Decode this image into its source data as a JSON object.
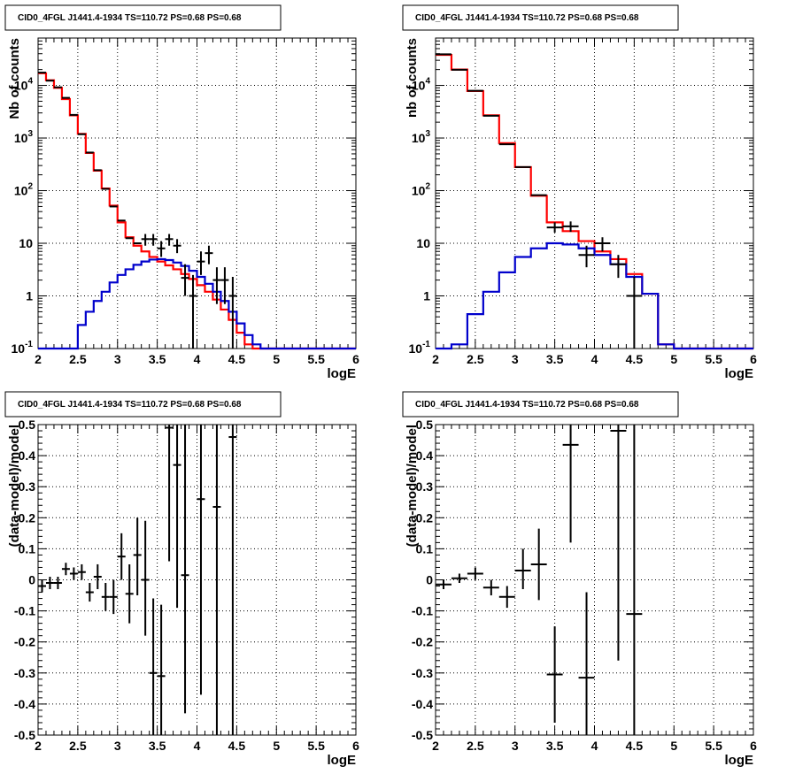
{
  "chart_data": [
    {
      "type": "histogram-log",
      "title": "CID0_4FGL J1441.4-1934 TS=110.72 PS=0.68 PS=0.68",
      "xlabel": "logE",
      "ylabel": "Nb of counts",
      "xlim": [
        2,
        6
      ],
      "ylim_log10": [
        -1,
        4.9
      ],
      "log_y": true,
      "grid": true,
      "x_ticks": [
        "2",
        "2.5",
        "3",
        "3.5",
        "4",
        "4.5",
        "5",
        "5.5",
        "6"
      ],
      "y_ticks": [
        {
          "value": 0.1,
          "label": "10",
          "exp": "-1"
        },
        {
          "value": 1,
          "label": "1",
          "exp": ""
        },
        {
          "value": 10,
          "label": "10",
          "exp": ""
        },
        {
          "value": 100,
          "label": "10",
          "exp": "2"
        },
        {
          "value": 1000,
          "label": "10",
          "exp": "3"
        },
        {
          "value": 10000,
          "label": "10",
          "exp": "4"
        }
      ],
      "bin_edges": [
        2.0,
        2.1,
        2.2,
        2.3,
        2.4,
        2.5,
        2.6,
        2.7,
        2.8,
        2.9,
        3.0,
        3.1,
        3.2,
        3.3,
        3.4,
        3.5,
        3.6,
        3.7,
        3.8,
        3.9,
        4.0,
        4.1,
        4.2,
        4.3,
        4.4,
        4.5,
        4.6,
        4.7,
        4.8,
        4.9,
        5.0,
        5.1,
        5.2,
        5.3,
        5.4,
        5.5,
        5.6,
        5.7,
        5.8,
        5.9,
        6.0
      ],
      "series": [
        {
          "name": "",
          "color": "#ff0000",
          "values": [
            17000,
            12500,
            9000,
            5500,
            2700,
            1200,
            520,
            240,
            110,
            52,
            25,
            13,
            9,
            7,
            5.5,
            4.5,
            3.8,
            3.2,
            2.6,
            2.1,
            1.6,
            1.2,
            0.85,
            0.55,
            0.35,
            0.2,
            0.12,
            0.1,
            0.1,
            0.1,
            0.1,
            0.1,
            0.1,
            0.1,
            0.1,
            0.1,
            0.1,
            0.1,
            0.1,
            0.1
          ]
        },
        {
          "name": "",
          "color": "#0000cc",
          "values": [
            0.1,
            0.1,
            0.1,
            0.1,
            0.1,
            0.28,
            0.5,
            0.8,
            1.2,
            1.8,
            2.5,
            3.2,
            3.9,
            4.5,
            4.9,
            5.0,
            4.8,
            4.3,
            3.7,
            3.0,
            2.3,
            1.7,
            1.2,
            0.8,
            0.5,
            0.3,
            0.18,
            0.12,
            0.1,
            0.1,
            0.1,
            0.1,
            0.1,
            0.1,
            0.1,
            0.1,
            0.1,
            0.1,
            0.1,
            0.1
          ]
        }
      ],
      "data_points": [
        {
          "x": 2.05,
          "y": 17500
        },
        {
          "x": 2.15,
          "y": 12300
        },
        {
          "x": 2.25,
          "y": 9200
        },
        {
          "x": 2.35,
          "y": 5800
        },
        {
          "x": 2.45,
          "y": 2750
        },
        {
          "x": 2.55,
          "y": 1180
        },
        {
          "x": 2.65,
          "y": 530
        },
        {
          "x": 2.75,
          "y": 245
        },
        {
          "x": 2.85,
          "y": 108
        },
        {
          "x": 2.95,
          "y": 50
        },
        {
          "x": 3.05,
          "y": 27
        },
        {
          "x": 3.15,
          "y": 12.5
        },
        {
          "x": 3.25,
          "y": 10
        },
        {
          "x": 3.35,
          "y": 12,
          "yerr": [
            9,
            15
          ]
        },
        {
          "x": 3.45,
          "y": 12,
          "yerr": [
            9,
            15
          ]
        },
        {
          "x": 3.55,
          "y": 8,
          "yerr": [
            5.5,
            11
          ]
        },
        {
          "x": 3.65,
          "y": 12,
          "yerr": [
            9,
            15
          ]
        },
        {
          "x": 3.75,
          "y": 9,
          "yerr": [
            6.5,
            12
          ]
        },
        {
          "x": 3.85,
          "y": 2.2,
          "yerr": [
            1,
            4
          ]
        },
        {
          "x": 3.95,
          "y": 1,
          "yerr": [
            0.1,
            2.5
          ]
        },
        {
          "x": 4.05,
          "y": 4.5,
          "yerr": [
            2.5,
            7
          ]
        },
        {
          "x": 4.15,
          "y": 6.5,
          "yerr": [
            4,
            9
          ]
        },
        {
          "x": 4.25,
          "y": 2,
          "yerr": [
            0.7,
            3.5
          ]
        },
        {
          "x": 4.35,
          "y": 2,
          "yerr": [
            0.7,
            3.5
          ]
        },
        {
          "x": 4.45,
          "y": 1,
          "yerr": [
            0.1,
            2.3
          ]
        }
      ]
    },
    {
      "type": "histogram-log",
      "title": "CID0_4FGL J1441.4-1934 TS=110.72 PS=0.68 PS=0.68",
      "xlabel": "logE",
      "ylabel": "nb of counts",
      "xlim": [
        2,
        6
      ],
      "ylim_log10": [
        -1,
        4.9
      ],
      "log_y": true,
      "grid": true,
      "x_ticks": [
        "2",
        "2.5",
        "3",
        "3.5",
        "4",
        "4.5",
        "5",
        "5.5",
        "6"
      ],
      "y_ticks": [
        {
          "value": 0.1,
          "label": "10",
          "exp": "-1"
        },
        {
          "value": 1,
          "label": "1",
          "exp": ""
        },
        {
          "value": 10,
          "label": "10",
          "exp": ""
        },
        {
          "value": 100,
          "label": "10",
          "exp": "2"
        },
        {
          "value": 1000,
          "label": "10",
          "exp": "3"
        },
        {
          "value": 10000,
          "label": "10",
          "exp": "4"
        }
      ],
      "bin_edges": [
        2.0,
        2.2,
        2.4,
        2.6,
        2.8,
        3.0,
        3.2,
        3.4,
        3.6,
        3.8,
        4.0,
        4.2,
        4.4,
        4.6,
        4.8,
        5.0,
        5.2,
        5.4,
        5.6,
        5.8,
        6.0
      ],
      "series": [
        {
          "name": "",
          "color": "#ff0000",
          "values": [
            38000,
            20000,
            7800,
            2700,
            800,
            280,
            80,
            25,
            17,
            11,
            7,
            5,
            2.6,
            1.1,
            0.12,
            0.1,
            0.1,
            0.1,
            0.1,
            0.1
          ]
        },
        {
          "name": "",
          "color": "#0000cc",
          "values": [
            0.1,
            0.12,
            0.45,
            1.2,
            2.8,
            5.5,
            8,
            10,
            9.5,
            8,
            6,
            4,
            2.3,
            1.1,
            0.12,
            0.1,
            0.1,
            0.1,
            0.1,
            0.1
          ]
        }
      ],
      "data_points": [
        {
          "x": 2.1,
          "y": 39000
        },
        {
          "x": 2.3,
          "y": 19800
        },
        {
          "x": 2.5,
          "y": 7900
        },
        {
          "x": 2.7,
          "y": 2650
        },
        {
          "x": 2.9,
          "y": 760
        },
        {
          "x": 3.1,
          "y": 280
        },
        {
          "x": 3.3,
          "y": 82
        },
        {
          "x": 3.5,
          "y": 20,
          "yerr": [
            16,
            25
          ]
        },
        {
          "x": 3.7,
          "y": 21,
          "yerr": [
            16.5,
            26
          ]
        },
        {
          "x": 3.9,
          "y": 6,
          "yerr": [
            3.5,
            9
          ]
        },
        {
          "x": 4.1,
          "y": 10,
          "yerr": [
            7,
            13
          ]
        },
        {
          "x": 4.3,
          "y": 4,
          "yerr": [
            2.2,
            6
          ]
        },
        {
          "x": 4.5,
          "y": 1,
          "yerr": [
            0.1,
            2.3
          ]
        }
      ]
    },
    {
      "type": "scatter-errorbars",
      "title": "CID0_4FGL J1441.4-1934 TS=110.72 PS=0.68 PS=0.68",
      "xlabel": "logE",
      "ylabel": "(data-model)/model",
      "xlim": [
        2,
        6
      ],
      "ylim": [
        -0.5,
        0.5
      ],
      "grid": true,
      "x_ticks": [
        "2",
        "2.5",
        "3",
        "3.5",
        "4",
        "4.5",
        "5",
        "5.5",
        "6"
      ],
      "y_ticks": [
        "-0.5",
        "-0.4",
        "-0.3",
        "-0.2",
        "-0.1",
        "0",
        "0.1",
        "0.2",
        "0.3",
        "0.4",
        "0.5"
      ],
      "xhalf": 0.05,
      "points": [
        {
          "x": 2.05,
          "y": -0.02,
          "lo": -0.04,
          "hi": 0.0
        },
        {
          "x": 2.15,
          "y": -0.01,
          "lo": -0.03,
          "hi": 0.01
        },
        {
          "x": 2.25,
          "y": -0.01,
          "lo": -0.03,
          "hi": 0.01
        },
        {
          "x": 2.35,
          "y": 0.035,
          "lo": 0.015,
          "hi": 0.055
        },
        {
          "x": 2.45,
          "y": 0.02,
          "lo": 0.0,
          "hi": 0.04
        },
        {
          "x": 2.55,
          "y": 0.025,
          "lo": 0.0,
          "hi": 0.05
        },
        {
          "x": 2.65,
          "y": -0.04,
          "lo": -0.07,
          "hi": -0.01
        },
        {
          "x": 2.75,
          "y": 0.01,
          "lo": -0.03,
          "hi": 0.05
        },
        {
          "x": 2.85,
          "y": -0.055,
          "lo": -0.1,
          "hi": -0.01
        },
        {
          "x": 2.95,
          "y": -0.055,
          "lo": -0.11,
          "hi": 0.0
        },
        {
          "x": 3.05,
          "y": 0.075,
          "lo": 0.0,
          "hi": 0.15
        },
        {
          "x": 3.15,
          "y": -0.045,
          "lo": -0.14,
          "hi": 0.05
        },
        {
          "x": 3.25,
          "y": 0.08,
          "lo": -0.05,
          "hi": 0.2
        },
        {
          "x": 3.35,
          "y": 0.0,
          "lo": -0.18,
          "hi": 0.19
        },
        {
          "x": 3.45,
          "y": -0.3,
          "lo": -0.5,
          "hi": -0.06
        },
        {
          "x": 3.55,
          "y": -0.31,
          "lo": -0.5,
          "hi": -0.08
        },
        {
          "x": 3.65,
          "y": 0.49,
          "lo": 0.06,
          "hi": 0.5
        },
        {
          "x": 3.75,
          "y": 0.37,
          "lo": -0.09,
          "hi": 0.5
        },
        {
          "x": 3.85,
          "y": 0.015,
          "lo": -0.43,
          "hi": 0.5
        },
        {
          "x": 4.05,
          "y": 0.26,
          "lo": -0.37,
          "hi": 0.5
        },
        {
          "x": 4.25,
          "y": 0.235,
          "lo": -0.5,
          "hi": 0.5
        },
        {
          "x": 4.45,
          "y": 0.46,
          "lo": -0.5,
          "hi": 0.5
        }
      ]
    },
    {
      "type": "scatter-errorbars",
      "title": "CID0_4FGL J1441.4-1934 TS=110.72 PS=0.68 PS=0.68",
      "xlabel": "logE",
      "ylabel": "(data-model)/model",
      "xlim": [
        2,
        6
      ],
      "ylim": [
        -0.5,
        0.5
      ],
      "grid": true,
      "x_ticks": [
        "2",
        "2.5",
        "3",
        "3.5",
        "4",
        "4.5",
        "5",
        "5.5",
        "6"
      ],
      "y_ticks": [
        "-0.5",
        "-0.4",
        "-0.3",
        "-0.2",
        "-0.1",
        "0",
        "0.1",
        "0.2",
        "0.3",
        "0.4",
        "0.5"
      ],
      "xhalf": 0.1,
      "points": [
        {
          "x": 2.1,
          "y": -0.015,
          "lo": -0.03,
          "hi": 0.0
        },
        {
          "x": 2.3,
          "y": 0.005,
          "lo": -0.01,
          "hi": 0.02
        },
        {
          "x": 2.5,
          "y": 0.02,
          "lo": 0.0,
          "hi": 0.04
        },
        {
          "x": 2.7,
          "y": -0.025,
          "lo": -0.05,
          "hi": 0.0
        },
        {
          "x": 2.9,
          "y": -0.055,
          "lo": -0.09,
          "hi": -0.02
        },
        {
          "x": 3.1,
          "y": 0.03,
          "lo": -0.03,
          "hi": 0.1
        },
        {
          "x": 3.3,
          "y": 0.05,
          "lo": -0.065,
          "hi": 0.165
        },
        {
          "x": 3.5,
          "y": -0.305,
          "lo": -0.46,
          "hi": -0.15
        },
        {
          "x": 3.7,
          "y": 0.435,
          "lo": 0.12,
          "hi": 0.5
        },
        {
          "x": 3.9,
          "y": -0.315,
          "lo": -0.5,
          "hi": -0.04
        },
        {
          "x": 4.3,
          "y": 0.48,
          "lo": -0.26,
          "hi": 0.5
        },
        {
          "x": 4.5,
          "y": -0.11,
          "lo": -0.5,
          "hi": 0.5
        }
      ]
    }
  ]
}
